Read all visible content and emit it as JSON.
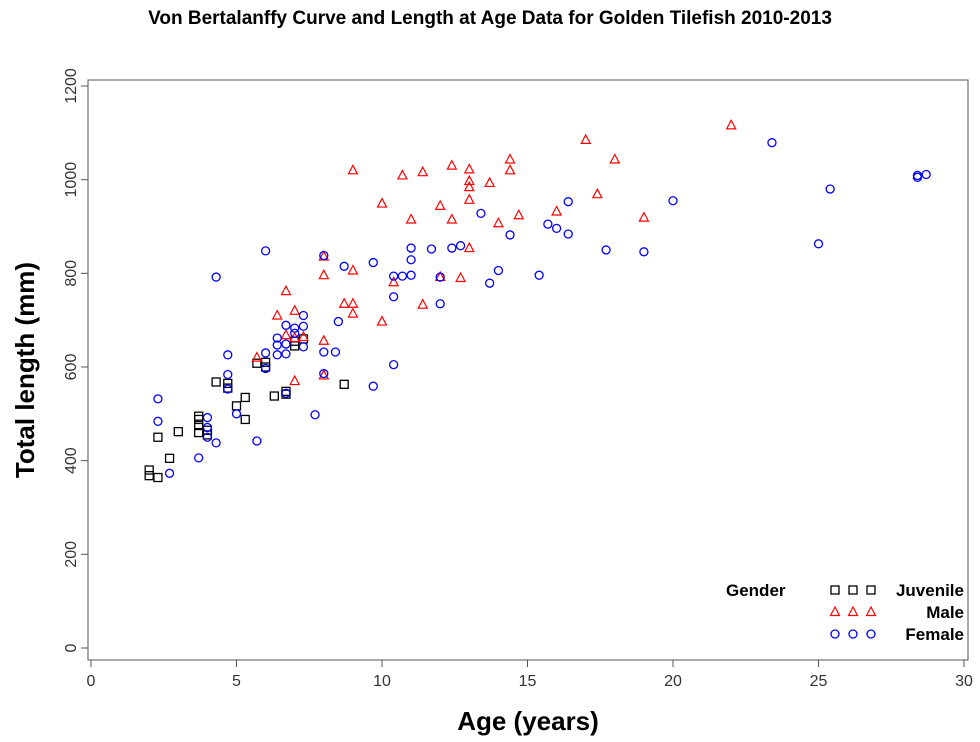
{
  "chart_data": {
    "type": "scatter",
    "title": "Von Bertalanffy Curve and Length at Age Data for Golden Tilefish 2010-2013",
    "x_label": "Age (years)",
    "y_label": "Total length (mm)",
    "xlim": [
      0,
      30
    ],
    "xticks": [
      0,
      5,
      10,
      15,
      20,
      25,
      30
    ],
    "ylim": [
      0,
      1200
    ],
    "yticks": [
      0,
      200,
      400,
      600,
      800,
      1000,
      1200
    ],
    "legend_title": "Gender",
    "legend_position": "bottom-right",
    "series": [
      {
        "name": "Juvenile",
        "color": "#000000",
        "marker": "square",
        "x": [
          2,
          2,
          2.3,
          2.3,
          2.7,
          3,
          3.7,
          3.7,
          3.7,
          3.7,
          4,
          4,
          4.3,
          4.7,
          4.7,
          5,
          5.3,
          5.3,
          5.7,
          6,
          6,
          6.3,
          6.7,
          6.7,
          7,
          7,
          7.3,
          8.7
        ],
        "values": [
          380,
          368,
          364,
          450,
          405,
          462,
          460,
          475,
          488,
          495,
          455,
          465,
          568,
          565,
          555,
          517,
          535,
          488,
          608,
          610,
          600,
          538,
          548,
          542,
          655,
          645,
          660,
          563
        ]
      },
      {
        "name": "Male",
        "color": "#ff0000",
        "marker": "triangle",
        "x": [
          5.7,
          6.4,
          6.7,
          6.7,
          7,
          7,
          7,
          7.3,
          8,
          8,
          8,
          8,
          8.7,
          9,
          9,
          9,
          9,
          10,
          10,
          10.4,
          10.7,
          11,
          11.4,
          11.4,
          12,
          12,
          12.4,
          12.4,
          12.7,
          13,
          13,
          13,
          13,
          13,
          13.7,
          14,
          14.4,
          14.4,
          14.7,
          16,
          17,
          17.4,
          18,
          19,
          22
        ],
        "values": [
          620,
          710,
          762,
          668,
          720,
          662,
          570,
          664,
          836,
          796,
          656,
          582,
          735,
          806,
          735,
          714,
          1020,
          949,
          697,
          781,
          1009,
          915,
          1016,
          733,
          944,
          792,
          1030,
          915,
          790,
          1022,
          997,
          984,
          957,
          854,
          993,
          907,
          1043,
          1020,
          924,
          932,
          1085,
          969,
          1043,
          919,
          1116
        ]
      },
      {
        "name": "Female",
        "color": "#0000ff",
        "marker": "circle",
        "x": [
          2.3,
          2.3,
          2.7,
          3.7,
          4,
          4,
          4,
          4.3,
          4.3,
          4.7,
          4.7,
          4.7,
          5,
          5.7,
          6,
          6,
          6,
          6.4,
          6.4,
          6.4,
          6.7,
          6.7,
          6.7,
          6.7,
          7,
          7,
          7.3,
          7.3,
          7.3,
          7.7,
          8,
          8,
          8,
          8.4,
          8.5,
          8.7,
          9.7,
          9.7,
          10.4,
          10.4,
          10.4,
          10.7,
          11,
          11,
          11,
          11.7,
          12,
          12,
          12.4,
          12.7,
          13.4,
          13.7,
          14,
          14.4,
          15.4,
          15.7,
          16,
          16.4,
          16.4,
          17.7,
          19,
          20,
          23.4,
          25,
          25.4,
          28.4,
          28.4,
          28.7
        ],
        "values": [
          532,
          484,
          373,
          406,
          492,
          471,
          450,
          438,
          792,
          626,
          584,
          553,
          500,
          442,
          848,
          630,
          597,
          662,
          647,
          626,
          689,
          649,
          628,
          544,
          683,
          672,
          710,
          687,
          643,
          498,
          838,
          632,
          586,
          632,
          697,
          815,
          823,
          559,
          794,
          750,
          605,
          794,
          854,
          829,
          796,
          852,
          792,
          735,
          854,
          859,
          928,
          779,
          806,
          882,
          796,
          905,
          896,
          953,
          884,
          850,
          846,
          955,
          1079,
          863,
          980,
          1005,
          1009,
          1011
        ]
      }
    ]
  }
}
